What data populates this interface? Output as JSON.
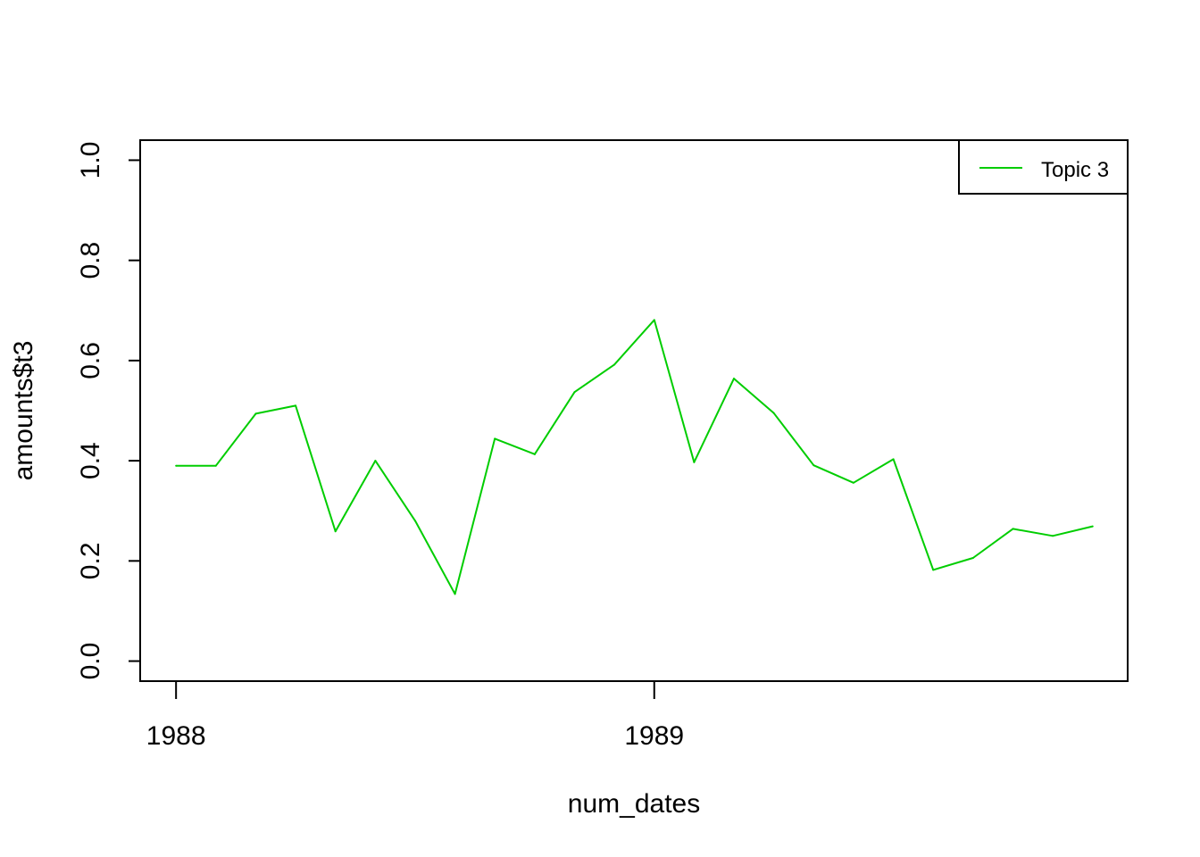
{
  "chart_data": {
    "type": "line",
    "xlabel": "num_dates",
    "ylabel": "amounts$t3",
    "xlim": [
      1987.925,
      1989.99
    ],
    "ylim": [
      -0.04,
      1.04
    ],
    "x_ticks": [
      {
        "value": 1988,
        "label": "1988"
      },
      {
        "value": 1989,
        "label": "1989"
      }
    ],
    "y_ticks": [
      {
        "value": 0.0,
        "label": "0.0"
      },
      {
        "value": 0.2,
        "label": "0.2"
      },
      {
        "value": 0.4,
        "label": "0.4"
      },
      {
        "value": 0.6,
        "label": "0.6"
      },
      {
        "value": 0.8,
        "label": "0.8"
      },
      {
        "value": 1.0,
        "label": "1.0"
      }
    ],
    "legend": {
      "position": "top-right",
      "boxed": true
    },
    "grid": false,
    "series": [
      {
        "name": "Topic 3",
        "color": "#00cd00",
        "x": [
          1988.0,
          1988.0833,
          1988.1667,
          1988.25,
          1988.3333,
          1988.4167,
          1988.5,
          1988.5833,
          1988.6667,
          1988.75,
          1988.8333,
          1988.9167,
          1989.0,
          1989.0833,
          1989.1667,
          1989.25,
          1989.3333,
          1989.4167,
          1989.5,
          1989.5833,
          1989.6667,
          1989.75,
          1989.8333,
          1989.9167
        ],
        "values": [
          0.39,
          0.39,
          0.494,
          0.51,
          0.259,
          0.4,
          0.28,
          0.134,
          0.444,
          0.413,
          0.537,
          0.592,
          0.681,
          0.397,
          0.564,
          0.495,
          0.391,
          0.356,
          0.403,
          0.182,
          0.206,
          0.264,
          0.25,
          0.269
        ]
      }
    ]
  }
}
